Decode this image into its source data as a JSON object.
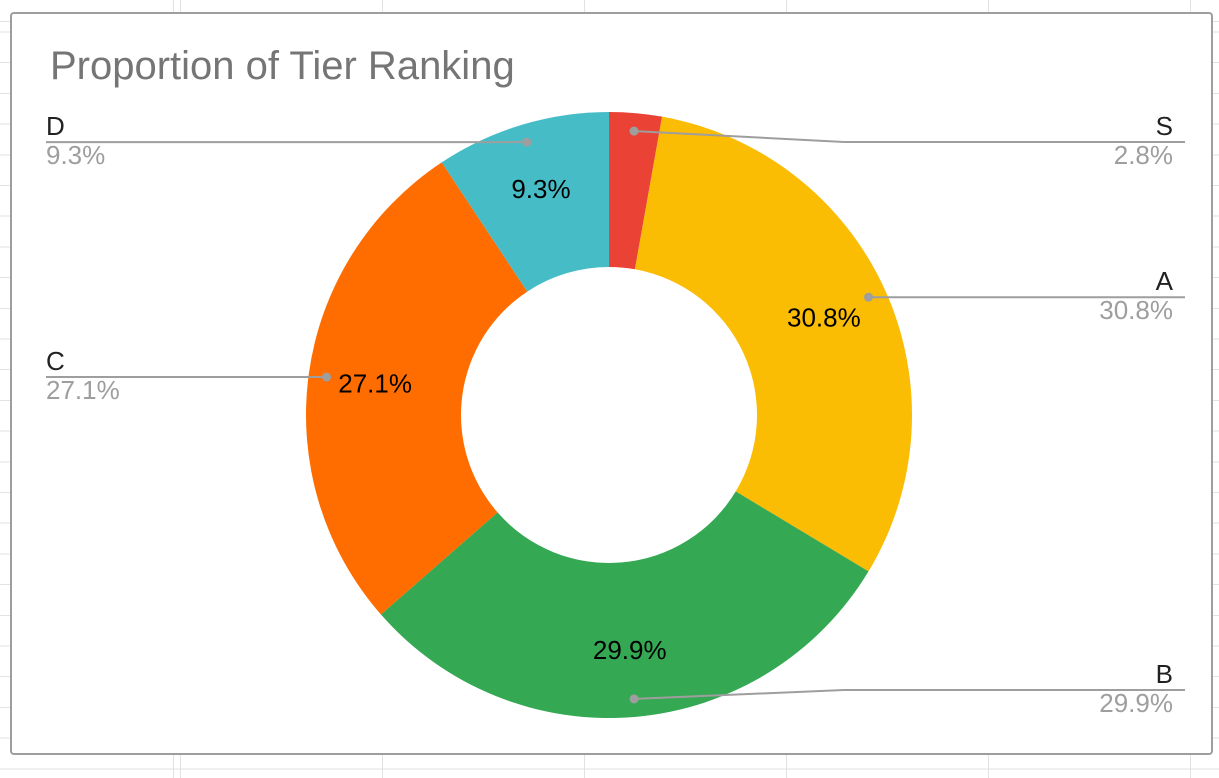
{
  "chart_data": {
    "type": "pie",
    "title": "Proportion of Tier Ranking",
    "donut_hole_ratio": 0.49,
    "start_angle_deg": 0,
    "direction": "clockwise",
    "categories": [
      "S",
      "A",
      "B",
      "C",
      "D"
    ],
    "values": [
      2.8,
      30.8,
      29.9,
      27.1,
      9.3
    ],
    "slice_labels": [
      "2.8%",
      "30.8%",
      "29.9%",
      "27.1%",
      "9.3%"
    ],
    "colors": [
      "#ea4335",
      "#fbbc04",
      "#34a853",
      "#ff6d01",
      "#46bdc6"
    ],
    "inside_label_min_pct": 5,
    "legend_position": "labeled-callouts",
    "callout_line_color": "#9e9e9e",
    "callout_name_color": "#212121",
    "callout_value_color": "#9e9e9e"
  },
  "card": {
    "background": "#ffffff",
    "border_color": "#9e9e9e",
    "title_color": "#757575"
  },
  "spreadsheet": {
    "grid_color": "#e2e2e2",
    "background": "#ffffff"
  }
}
